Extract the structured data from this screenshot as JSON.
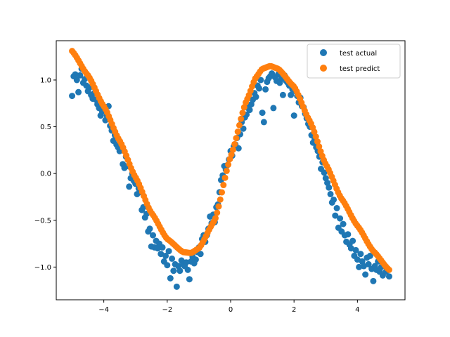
{
  "chart_data": {
    "type": "scatter",
    "title": "",
    "xlabel": "",
    "ylabel": "",
    "xlim": [
      -5.5,
      5.5
    ],
    "ylim": [
      -1.35,
      1.42
    ],
    "xticks": [
      -4,
      -2,
      0,
      2,
      4
    ],
    "yticks": [
      -1.0,
      -0.5,
      0.0,
      0.5,
      1.0
    ],
    "xtick_labels": [
      "−4",
      "−2",
      "0",
      "2",
      "4"
    ],
    "ytick_labels": [
      "−1.0",
      "−0.5",
      "0.0",
      "0.5",
      "1.0"
    ],
    "grid": false,
    "legend_position": "top-right",
    "series": [
      {
        "name": "test actual",
        "color": "#1f77b4",
        "points": [
          [
            -5.0,
            0.83
          ],
          [
            -4.95,
            1.04
          ],
          [
            -4.9,
            1.06
          ],
          [
            -4.85,
            1.0
          ],
          [
            -4.8,
            0.87
          ],
          [
            -4.75,
            1.05
          ],
          [
            -4.7,
            1.12
          ],
          [
            -4.65,
            0.97
          ],
          [
            -4.6,
            1.01
          ],
          [
            -4.55,
            0.94
          ],
          [
            -4.5,
            0.88
          ],
          [
            -4.45,
            0.92
          ],
          [
            -4.4,
            0.84
          ],
          [
            -4.35,
            0.8
          ],
          [
            -4.3,
            0.86
          ],
          [
            -4.25,
            0.79
          ],
          [
            -4.2,
            0.74
          ],
          [
            -4.15,
            0.7
          ],
          [
            -4.1,
            0.62
          ],
          [
            -4.05,
            0.66
          ],
          [
            -4.0,
            0.71
          ],
          [
            -3.95,
            0.57
          ],
          [
            -3.9,
            0.62
          ],
          [
            -3.85,
            0.72
          ],
          [
            -3.8,
            0.51
          ],
          [
            -3.75,
            0.46
          ],
          [
            -3.7,
            0.35
          ],
          [
            -3.65,
            0.41
          ],
          [
            -3.6,
            0.31
          ],
          [
            -3.55,
            0.28
          ],
          [
            -3.5,
            0.24
          ],
          [
            -3.45,
            0.26
          ],
          [
            -3.4,
            0.1
          ],
          [
            -3.35,
            0.06
          ],
          [
            -3.3,
            0.18
          ],
          [
            -3.25,
            0.08
          ],
          [
            -3.2,
            -0.14
          ],
          [
            -3.15,
            -0.05
          ],
          [
            -3.1,
            0.0
          ],
          [
            -3.05,
            -0.08
          ],
          [
            -3.0,
            -0.11
          ],
          [
            -2.95,
            -0.22
          ],
          [
            -2.9,
            -0.16
          ],
          [
            -2.85,
            -0.2
          ],
          [
            -2.8,
            -0.39
          ],
          [
            -2.75,
            -0.36
          ],
          [
            -2.7,
            -0.47
          ],
          [
            -2.65,
            -0.43
          ],
          [
            -2.6,
            -0.62
          ],
          [
            -2.55,
            -0.59
          ],
          [
            -2.5,
            -0.78
          ],
          [
            -2.45,
            -0.66
          ],
          [
            -2.4,
            -0.79
          ],
          [
            -2.35,
            -0.72
          ],
          [
            -2.3,
            -0.8
          ],
          [
            -2.25,
            -0.75
          ],
          [
            -2.2,
            -0.86
          ],
          [
            -2.15,
            -0.79
          ],
          [
            -2.1,
            -0.94
          ],
          [
            -2.05,
            -0.88
          ],
          [
            -2.0,
            -0.98
          ],
          [
            -1.95,
            -0.83
          ],
          [
            -1.9,
            -1.12
          ],
          [
            -1.85,
            -0.91
          ],
          [
            -1.8,
            -1.04
          ],
          [
            -1.75,
            -0.97
          ],
          [
            -1.7,
            -1.21
          ],
          [
            -1.65,
            -0.99
          ],
          [
            -1.6,
            -1.04
          ],
          [
            -1.55,
            -0.93
          ],
          [
            -1.5,
            -0.97
          ],
          [
            -1.45,
            -0.99
          ],
          [
            -1.4,
            -0.95
          ],
          [
            -1.35,
            -1.03
          ],
          [
            -1.3,
            -1.13
          ],
          [
            -1.25,
            -0.94
          ],
          [
            -1.2,
            -0.89
          ],
          [
            -1.15,
            -0.96
          ],
          [
            -1.1,
            -0.92
          ],
          [
            -1.05,
            -0.84
          ],
          [
            -1.0,
            -0.79
          ],
          [
            -0.95,
            -0.86
          ],
          [
            -0.9,
            -0.7
          ],
          [
            -0.85,
            -0.66
          ],
          [
            -0.8,
            -0.73
          ],
          [
            -0.75,
            -0.66
          ],
          [
            -0.7,
            -0.59
          ],
          [
            -0.65,
            -0.46
          ],
          [
            -0.6,
            -0.53
          ],
          [
            -0.55,
            -0.44
          ],
          [
            -0.5,
            -0.52
          ],
          [
            -0.45,
            -0.36
          ],
          [
            -0.4,
            -0.33
          ],
          [
            -0.35,
            -0.2
          ],
          [
            -0.3,
            -0.07
          ],
          [
            -0.25,
            -0.02
          ],
          [
            -0.2,
            0.08
          ],
          [
            -0.15,
            0.04
          ],
          [
            -0.1,
            0.09
          ],
          [
            -0.05,
            0.15
          ],
          [
            0.0,
            0.24
          ],
          [
            0.05,
            0.19
          ],
          [
            0.1,
            0.29
          ],
          [
            0.15,
            0.31
          ],
          [
            0.2,
            0.38
          ],
          [
            0.25,
            0.27
          ],
          [
            0.3,
            0.42
          ],
          [
            0.35,
            0.55
          ],
          [
            0.4,
            0.48
          ],
          [
            0.45,
            0.6
          ],
          [
            0.5,
            0.63
          ],
          [
            0.55,
            0.7
          ],
          [
            0.6,
            0.68
          ],
          [
            0.65,
            0.74
          ],
          [
            0.7,
            0.79
          ],
          [
            0.75,
            0.86
          ],
          [
            0.8,
            0.82
          ],
          [
            0.85,
            0.94
          ],
          [
            0.9,
            0.91
          ],
          [
            0.95,
            1.0
          ],
          [
            1.0,
            0.65
          ],
          [
            1.05,
            0.55
          ],
          [
            1.1,
            0.9
          ],
          [
            1.15,
            0.98
          ],
          [
            1.2,
            1.02
          ],
          [
            1.25,
            1.04
          ],
          [
            1.3,
            1.07
          ],
          [
            1.35,
            0.7
          ],
          [
            1.4,
            1.03
          ],
          [
            1.45,
            0.99
          ],
          [
            1.5,
            1.06
          ],
          [
            1.55,
            0.97
          ],
          [
            1.6,
            1.01
          ],
          [
            1.65,
            0.84
          ],
          [
            1.7,
            1.05
          ],
          [
            1.75,
            0.99
          ],
          [
            1.8,
            0.97
          ],
          [
            1.85,
            0.94
          ],
          [
            1.9,
            0.84
          ],
          [
            1.95,
            0.9
          ],
          [
            2.0,
            0.62
          ],
          [
            2.05,
            0.88
          ],
          [
            2.1,
            0.83
          ],
          [
            2.15,
            0.76
          ],
          [
            2.2,
            0.81
          ],
          [
            2.25,
            0.72
          ],
          [
            2.3,
            0.71
          ],
          [
            2.35,
            0.64
          ],
          [
            2.4,
            0.59
          ],
          [
            2.45,
            0.53
          ],
          [
            2.5,
            0.5
          ],
          [
            2.55,
            0.41
          ],
          [
            2.6,
            0.33
          ],
          [
            2.65,
            0.37
          ],
          [
            2.7,
            0.28
          ],
          [
            2.75,
            0.24
          ],
          [
            2.8,
            0.18
          ],
          [
            2.85,
            0.05
          ],
          [
            2.9,
            0.12
          ],
          [
            2.95,
            0.01
          ],
          [
            3.0,
            -0.05
          ],
          [
            3.05,
            -0.1
          ],
          [
            3.1,
            -0.15
          ],
          [
            3.15,
            -0.22
          ],
          [
            3.2,
            -0.31
          ],
          [
            3.25,
            -0.28
          ],
          [
            3.3,
            -0.45
          ],
          [
            3.35,
            -0.37
          ],
          [
            3.4,
            -0.58
          ],
          [
            3.45,
            -0.48
          ],
          [
            3.5,
            -0.62
          ],
          [
            3.55,
            -0.54
          ],
          [
            3.6,
            -0.66
          ],
          [
            3.65,
            -0.73
          ],
          [
            3.7,
            -0.65
          ],
          [
            3.75,
            -0.76
          ],
          [
            3.8,
            -0.8
          ],
          [
            3.85,
            -0.72
          ],
          [
            3.9,
            -0.88
          ],
          [
            3.95,
            -0.82
          ],
          [
            4.0,
            -0.92
          ],
          [
            4.05,
            -1.0
          ],
          [
            4.1,
            -0.86
          ],
          [
            4.15,
            -0.94
          ],
          [
            4.2,
            -0.99
          ],
          [
            4.25,
            -1.08
          ],
          [
            4.3,
            -0.9
          ],
          [
            4.35,
            -0.97
          ],
          [
            4.4,
            -0.88
          ],
          [
            4.45,
            -1.02
          ],
          [
            4.5,
            -1.15
          ],
          [
            4.55,
            -0.99
          ],
          [
            4.6,
            -1.03
          ],
          [
            4.65,
            -0.94
          ],
          [
            4.7,
            -1.05
          ],
          [
            4.75,
            -1.0
          ],
          [
            4.8,
            -1.09
          ],
          [
            4.85,
            -0.98
          ],
          [
            4.9,
            -1.05
          ],
          [
            4.95,
            -1.02
          ],
          [
            5.0,
            -1.1
          ]
        ]
      },
      {
        "name": "test predict",
        "color": "#ff7f0e",
        "x_start": -5.0,
        "x_end": 5.0,
        "x_count": 200,
        "curve_knots": [
          [
            -5.0,
            1.31
          ],
          [
            -4.5,
            1.05
          ],
          [
            -4.0,
            0.72
          ],
          [
            -3.5,
            0.35
          ],
          [
            -3.0,
            -0.04
          ],
          [
            -2.5,
            -0.42
          ],
          [
            -2.0,
            -0.7
          ],
          [
            -1.5,
            -0.84
          ],
          [
            -1.25,
            -0.85
          ],
          [
            -1.0,
            -0.8
          ],
          [
            -0.5,
            -0.5
          ],
          [
            0.0,
            0.18
          ],
          [
            0.5,
            0.78
          ],
          [
            0.8,
            1.03
          ],
          [
            1.0,
            1.12
          ],
          [
            1.25,
            1.15
          ],
          [
            1.5,
            1.12
          ],
          [
            2.0,
            0.93
          ],
          [
            2.5,
            0.56
          ],
          [
            3.0,
            0.1
          ],
          [
            3.5,
            -0.27
          ],
          [
            4.0,
            -0.56
          ],
          [
            4.5,
            -0.83
          ],
          [
            5.0,
            -1.03
          ]
        ]
      }
    ]
  }
}
